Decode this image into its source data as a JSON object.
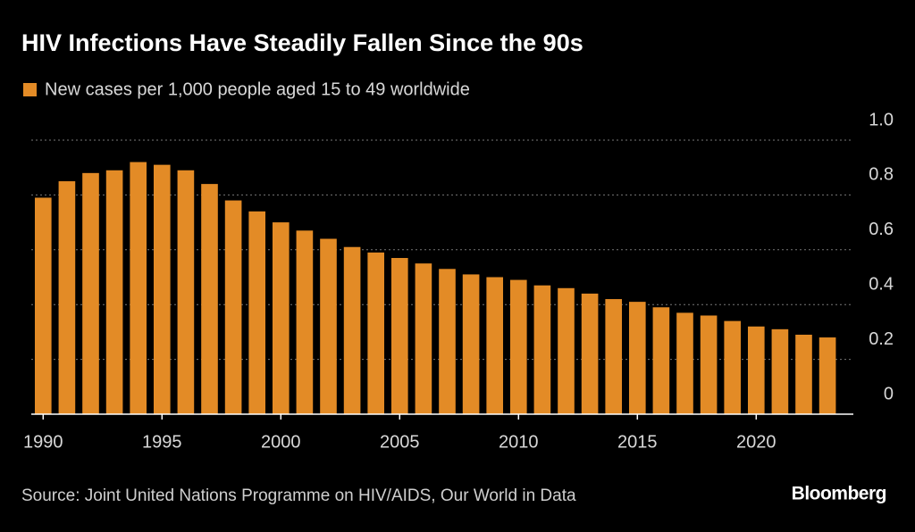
{
  "chart_data": {
    "type": "bar",
    "title": "HIV Infections Have Steadily Fallen Since the 90s",
    "source": "Source: Joint United Nations Programme on HIV/AIDS, Our World in Data",
    "brand": "Bloomberg",
    "grid": true,
    "x": [
      1990,
      1991,
      1992,
      1993,
      1994,
      1995,
      1996,
      1997,
      1998,
      1999,
      2000,
      2001,
      2002,
      2003,
      2004,
      2005,
      2006,
      2007,
      2008,
      2009,
      2010,
      2011,
      2012,
      2013,
      2014,
      2015,
      2016,
      2017,
      2018,
      2019,
      2020,
      2021,
      2022,
      2023
    ],
    "series": [
      {
        "name": "New cases per 1,000 people aged 15 to 49 worldwide",
        "color": "#e38b26",
        "values": [
          0.79,
          0.85,
          0.88,
          0.89,
          0.92,
          0.91,
          0.89,
          0.84,
          0.78,
          0.74,
          0.7,
          0.67,
          0.64,
          0.61,
          0.59,
          0.57,
          0.55,
          0.53,
          0.51,
          0.5,
          0.49,
          0.47,
          0.46,
          0.44,
          0.42,
          0.41,
          0.39,
          0.37,
          0.36,
          0.34,
          0.32,
          0.31,
          0.29,
          0.28
        ]
      }
    ],
    "xlim": [
      1989.5,
      2024.5
    ],
    "xticks": [
      1990,
      1995,
      2000,
      2005,
      2010,
      2015,
      2020
    ],
    "ylim": [
      0,
      1
    ],
    "yticks": [
      0,
      0.2,
      0.4,
      0.6,
      0.8,
      {
        "value": 1,
        "label": "1.0"
      }
    ]
  }
}
